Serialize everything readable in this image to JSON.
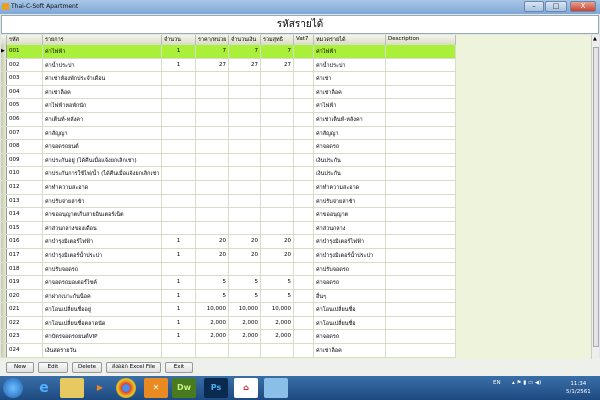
{
  "window": {
    "title": "Thai-C-Soft Apartment"
  },
  "header": {
    "title": "รหัสรายได้"
  },
  "columns": [
    "รหัส",
    "รายการ",
    "จำนวน",
    "ราคา/หน่วย",
    "จำนวนเงิน",
    "รวมสุทธิ",
    "Vat7",
    "หมวดรายได้",
    "Description"
  ],
  "rows": [
    [
      "001",
      "ค่าไฟฟ้า",
      "1",
      "7",
      "7",
      "7",
      "",
      "ค่าไฟฟ้า",
      ""
    ],
    [
      "002",
      "ค่าน้ำประปา",
      "1",
      "27",
      "27",
      "27",
      "",
      "ค่าน้ำประปา",
      ""
    ],
    [
      "003",
      "ค่าเช่าห้องพักประจำเดือน",
      "",
      "",
      "",
      "",
      "",
      "ค่าเช่า",
      ""
    ],
    [
      "004",
      "ค่าเช่าล็อค",
      "",
      "",
      "",
      "",
      "",
      "ค่าเช่าล็อค",
      ""
    ],
    [
      "005",
      "ค่าไฟฟ้าหอพักนัก",
      "",
      "",
      "",
      "",
      "",
      "ค่าไฟฟ้า",
      ""
    ],
    [
      "006",
      "ค่าเต็นท์-หลังคา",
      "",
      "",
      "",
      "",
      "",
      "ค่าเช่าเต็นท์-หลังคา",
      ""
    ],
    [
      "007",
      "ค่าสัญญา",
      "",
      "",
      "",
      "",
      "",
      "ค่าสัญญา",
      ""
    ],
    [
      "008",
      "ค่าจอดรถยนต์",
      "",
      "",
      "",
      "",
      "",
      "ค่าจอดรถ",
      ""
    ],
    [
      "009",
      "ค่าประกันอยู่ (ได้คืนเมื่อแจ้งยกเลิกเช่า)",
      "",
      "",
      "",
      "",
      "",
      "เงินประกัน",
      ""
    ],
    [
      "010",
      "ค่าประกันการใช้ไฟ/น้ำ (ได้คืนเมื่อแจ้งยกเลิกเช่า",
      "",
      "",
      "",
      "",
      "",
      "เงินประกัน",
      ""
    ],
    [
      "012",
      "ค่าทำความสะอาด",
      "",
      "",
      "",
      "",
      "",
      "ค่าทำความสะอาด",
      ""
    ],
    [
      "013",
      "ค่าปรับจ่ายล่าช้า",
      "",
      "",
      "",
      "",
      "",
      "ค่าปรับจ่ายล่าช้า",
      ""
    ],
    [
      "014",
      "ค่าขออนุญาตเก็บสายอินเตอร์เน็ต",
      "",
      "",
      "",
      "",
      "",
      "ค่าขออนุญาต",
      ""
    ],
    [
      "015",
      "ค่าส่วนกลางของเดือน",
      "",
      "",
      "",
      "",
      "",
      "ค่าส่วนกลาง",
      ""
    ],
    [
      "016",
      "ค่าบำรุงมิเตอร์ไฟฟ้า",
      "1",
      "20",
      "20",
      "20",
      "",
      "ค่าบำรุงมิเตอร์ไฟฟ้า",
      ""
    ],
    [
      "017",
      "ค่าบำรุงมิเตอร์น้ำประปา",
      "1",
      "20",
      "20",
      "20",
      "",
      "ค่าบำรุงมิเตอร์น้ำประปา",
      ""
    ],
    [
      "018",
      "ค่าปรับจอดรถ",
      "",
      "",
      "",
      "",
      "",
      "ค่าปรับจอดรถ",
      ""
    ],
    [
      "019",
      "ค่าจอดรถมอเตอร์ไซค์",
      "1",
      "5",
      "5",
      "5",
      "",
      "ค่าจอดรถ",
      ""
    ],
    [
      "020",
      "ค่าฝากเบาะกันน็อค",
      "1",
      "5",
      "5",
      "5",
      "",
      "อื่นๆ",
      ""
    ],
    [
      "021",
      "ค่าโอนเปลี่ยนชื่ออยู่",
      "1",
      "10,000",
      "10,000",
      "10,000",
      "",
      "ค่าโอนเปลี่ยนชื่อ",
      ""
    ],
    [
      "022",
      "ค่าโอนเปลี่ยนชื่อตลาดนัด",
      "1",
      "2,000",
      "2,000",
      "2,000",
      "",
      "ค่าโอนเปลี่ยนชื่อ",
      ""
    ],
    [
      "023",
      "ค่าบัตรจอดรถยนต์VIP",
      "1",
      "2,000",
      "2,000",
      "2,000",
      "",
      "ค่าจอดรถ",
      ""
    ],
    [
      "024",
      "เงินสดรายวัน",
      "",
      "",
      "",
      "",
      "",
      "ค่าเช่าล็อค",
      ""
    ]
  ],
  "selected_row": 0,
  "selected_color": "#aaf03a",
  "buttons": {
    "new": "New",
    "edit": "Edit",
    "delete": "Delete",
    "export": "ส่งออก Excel File",
    "exit": "Exit"
  },
  "taskbar": {
    "apps": [
      "ie-icon",
      "explorer-icon",
      "media-player-icon",
      "chrome-icon",
      "xampp-icon",
      "Dw",
      "Ps",
      "apartment-app-icon",
      "remote-icon"
    ],
    "lang": "EN",
    "time": "11:34",
    "date": "5/1/2561"
  }
}
